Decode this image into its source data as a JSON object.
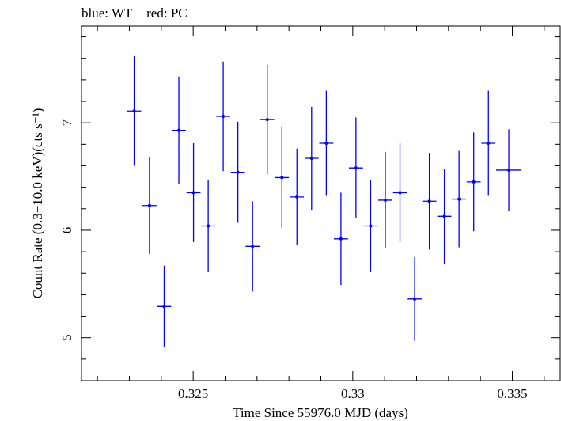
{
  "chart_data": {
    "type": "scatter",
    "title": "blue: WT − red: PC",
    "xlabel": "Time Since 55976.0 MJD (days)",
    "ylabel": "Count Rate (0.3−10.0 keV)(cts s⁻¹)",
    "xlim": [
      0.3215,
      0.3365
    ],
    "ylim": [
      4.6,
      7.9
    ],
    "x_ticks": [
      0.325,
      0.33,
      0.335
    ],
    "x_tick_labels": [
      "0.325",
      "0.33",
      "0.335"
    ],
    "y_ticks": [
      5,
      6,
      7
    ],
    "y_tick_labels": [
      "5",
      "6",
      "7"
    ],
    "grid": false,
    "series": [
      {
        "name": "WT",
        "color": "#0000ff",
        "points": [
          {
            "x": 0.32315,
            "xerr": 0.00022,
            "y": 7.11,
            "yerr": 0.51
          },
          {
            "x": 0.32363,
            "xerr": 0.00022,
            "y": 6.23,
            "yerr": 0.45
          },
          {
            "x": 0.32409,
            "xerr": 0.00022,
            "y": 5.29,
            "yerr": 0.38
          },
          {
            "x": 0.32455,
            "xerr": 0.00022,
            "y": 6.93,
            "yerr": 0.5
          },
          {
            "x": 0.32501,
            "xerr": 0.00022,
            "y": 6.35,
            "yerr": 0.46
          },
          {
            "x": 0.32547,
            "xerr": 0.00022,
            "y": 6.04,
            "yerr": 0.43
          },
          {
            "x": 0.32594,
            "xerr": 0.00022,
            "y": 7.06,
            "yerr": 0.51
          },
          {
            "x": 0.3264,
            "xerr": 0.00022,
            "y": 6.54,
            "yerr": 0.47
          },
          {
            "x": 0.32686,
            "xerr": 0.00022,
            "y": 5.85,
            "yerr": 0.42
          },
          {
            "x": 0.32732,
            "xerr": 0.00022,
            "y": 7.03,
            "yerr": 0.51
          },
          {
            "x": 0.32778,
            "xerr": 0.00022,
            "y": 6.49,
            "yerr": 0.47
          },
          {
            "x": 0.32825,
            "xerr": 0.00022,
            "y": 6.31,
            "yerr": 0.45
          },
          {
            "x": 0.32871,
            "xerr": 0.00022,
            "y": 6.67,
            "yerr": 0.48
          },
          {
            "x": 0.32917,
            "xerr": 0.00022,
            "y": 6.81,
            "yerr": 0.49
          },
          {
            "x": 0.32963,
            "xerr": 0.00022,
            "y": 5.92,
            "yerr": 0.43
          },
          {
            "x": 0.3301,
            "xerr": 0.00022,
            "y": 6.58,
            "yerr": 0.47
          },
          {
            "x": 0.33056,
            "xerr": 0.00022,
            "y": 6.04,
            "yerr": 0.43
          },
          {
            "x": 0.33102,
            "xerr": 0.00022,
            "y": 6.28,
            "yerr": 0.45
          },
          {
            "x": 0.33148,
            "xerr": 0.00022,
            "y": 6.35,
            "yerr": 0.46
          },
          {
            "x": 0.33194,
            "xerr": 0.00022,
            "y": 5.36,
            "yerr": 0.39
          },
          {
            "x": 0.3324,
            "xerr": 0.00022,
            "y": 6.27,
            "yerr": 0.45
          },
          {
            "x": 0.33287,
            "xerr": 0.00022,
            "y": 6.13,
            "yerr": 0.44
          },
          {
            "x": 0.33333,
            "xerr": 0.00022,
            "y": 6.29,
            "yerr": 0.45
          },
          {
            "x": 0.33379,
            "xerr": 0.00022,
            "y": 6.45,
            "yerr": 0.46
          },
          {
            "x": 0.33425,
            "xerr": 0.00022,
            "y": 6.81,
            "yerr": 0.49
          },
          {
            "x": 0.33489,
            "xerr": 0.0004,
            "y": 6.56,
            "yerr": 0.38
          }
        ]
      }
    ]
  }
}
